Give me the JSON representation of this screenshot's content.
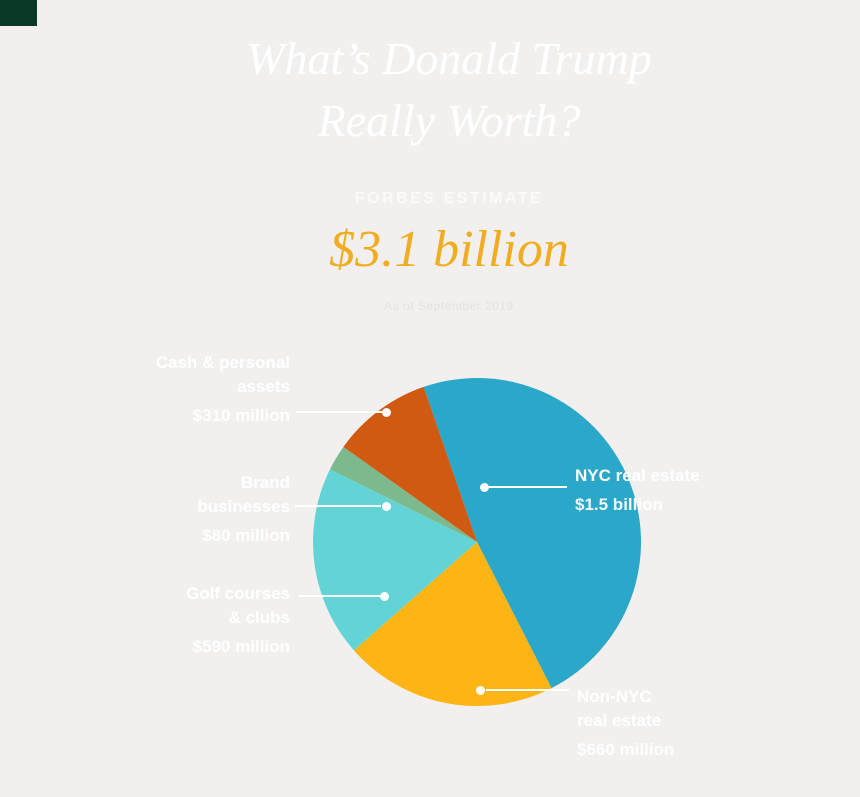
{
  "header": {
    "title": "What’s Donald Trump\nReally Worth?",
    "estimate_label": "FORBES ESTIMATE",
    "amount": "$3.1 billion",
    "as_of": "As of September 2019"
  },
  "colors": {
    "background": "#f2f0ee",
    "accent_gold": "#f1ad22",
    "label_text": "#ffffff"
  },
  "chart_data": {
    "type": "pie",
    "title": "What’s Donald Trump Really Worth?",
    "subtitle": "Forbes estimate",
    "total_label": "$3.1 billion",
    "unit": "USD millions",
    "legend_position": "callouts",
    "start_angle_deg": -19,
    "slices": [
      {
        "id": "nyc-real-estate",
        "label": "NYC real estate",
        "value": 1500,
        "value_label": "$1.5 billion",
        "color": "#2ba7c9"
      },
      {
        "id": "non-nyc-real-estate",
        "label": "Non-NYC\nreal estate",
        "value": 660,
        "value_label": "$660 million",
        "color": "#fdb515"
      },
      {
        "id": "golf-courses-clubs",
        "label": "Golf courses\n& clubs",
        "value": 590,
        "value_label": "$590 million",
        "color": "#62d4d5"
      },
      {
        "id": "brand-businesses",
        "label": "Brand\nbusinesses",
        "value": 80,
        "value_label": "$80 million",
        "color": "#7cb98c"
      },
      {
        "id": "cash-personal-assets",
        "label": "Cash & personal\nassets",
        "value": 310,
        "value_label": "$310 million",
        "color": "#d05a11"
      }
    ]
  }
}
